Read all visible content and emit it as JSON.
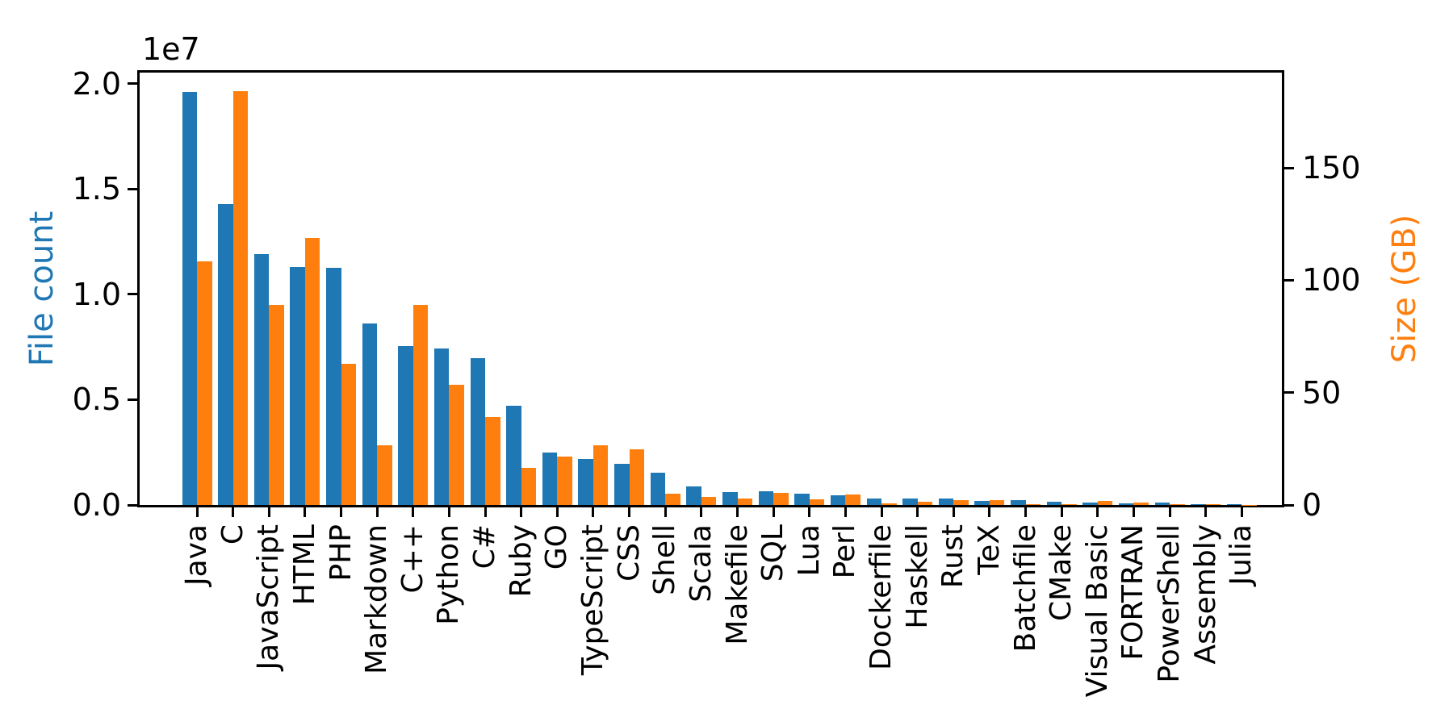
{
  "chart_data": {
    "type": "bar",
    "title": "",
    "categories": [
      "Java",
      "C",
      "JavaScript",
      "HTML",
      "PHP",
      "Markdown",
      "C++",
      "Python",
      "C#",
      "Ruby",
      "GO",
      "TypeScript",
      "CSS",
      "Shell",
      "Scala",
      "Makefile",
      "SQL",
      "Lua",
      "Perl",
      "Dockerfile",
      "Haskell",
      "Rust",
      "TeX",
      "Batchfile",
      "CMake",
      "Visual Basic",
      "FORTRAN",
      "PowerShell",
      "Assembly",
      "Julia"
    ],
    "series": [
      {
        "name": "File count",
        "axis": "left",
        "color": "#1f77b4",
        "values": [
          19600000,
          14300000,
          11900000,
          11300000,
          11250000,
          8600000,
          7550000,
          7430000,
          6960000,
          4700000,
          2490000,
          2170000,
          1950000,
          1550000,
          880000,
          620000,
          640000,
          550000,
          460000,
          320000,
          320000,
          320000,
          210000,
          230000,
          140000,
          130000,
          70000,
          100000,
          40000,
          25000
        ]
      },
      {
        "name": "Size (GB)",
        "axis": "right",
        "color": "#ff7f0e",
        "values": [
          108.5,
          184,
          89,
          119,
          63,
          26.5,
          89,
          53.5,
          39,
          16.5,
          21.5,
          26.7,
          24.7,
          4.9,
          3.7,
          2.8,
          5.4,
          2.4,
          4.6,
          0.6,
          1.5,
          2.2,
          2.0,
          0.3,
          0.25,
          1.7,
          1.2,
          0.3,
          0.4,
          0.15
        ]
      }
    ],
    "left_axis": {
      "label": "File count",
      "offset_label": "1e7",
      "tick_labels": [
        "0.0",
        "0.5",
        "1.0",
        "1.5",
        "2.0"
      ],
      "tick_values": [
        0,
        5000000,
        10000000,
        15000000,
        20000000
      ],
      "range": [
        0,
        20520000
      ]
    },
    "right_axis": {
      "label": "Size (GB)",
      "tick_labels": [
        "0",
        "50",
        "100",
        "150"
      ],
      "tick_values": [
        0,
        50,
        100,
        150
      ],
      "range": [
        0,
        192.4
      ]
    },
    "legend": "none",
    "grid": false
  },
  "style": {
    "blue": "#1f77b4",
    "orange": "#ff7f0e",
    "spine": "#000000"
  }
}
